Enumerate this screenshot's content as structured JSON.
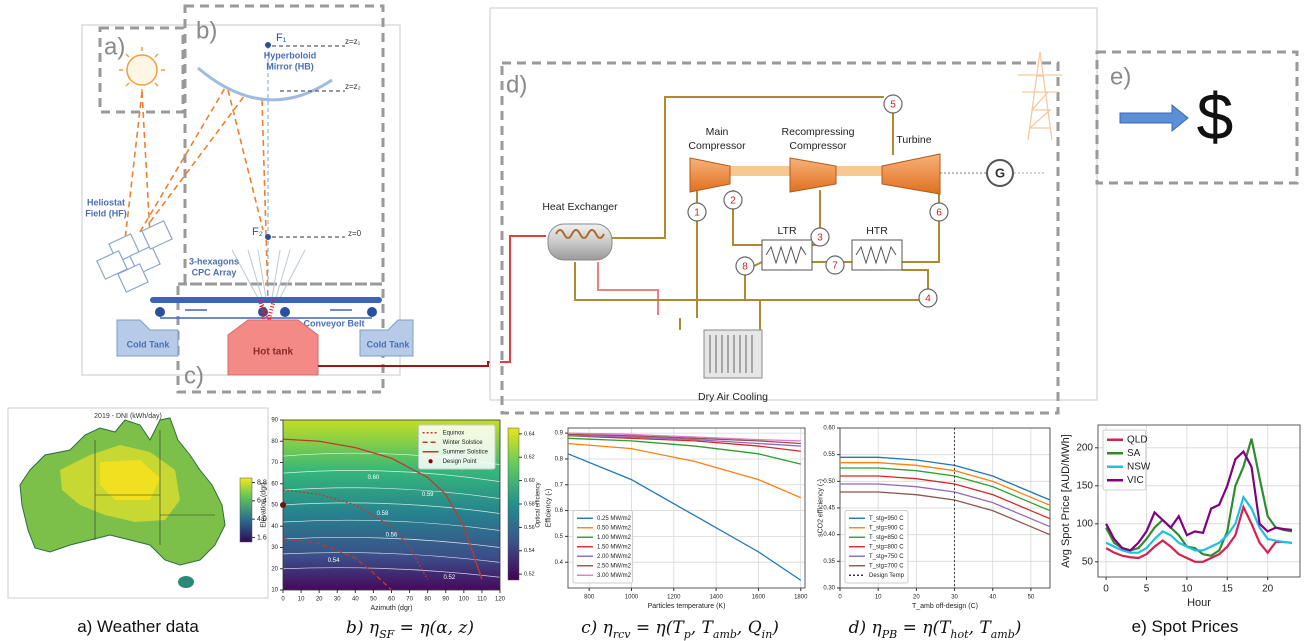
{
  "diagram": {
    "concept": {
      "panel_a": "a)",
      "panel_b": "b)",
      "panel_c": "c)",
      "focus_top": "F₁",
      "level_top": "z=z₁",
      "mirror": [
        "Hyperboloid",
        "Mirror (HB)"
      ],
      "level_mid": "z=z₂",
      "heliostats": [
        "Heliostat",
        "Field (HF)"
      ],
      "focus_bottom": "F₂",
      "level_bottom": "z=0",
      "cpc": [
        "3-hexagons",
        "CPC Array"
      ],
      "conveyor": "Conveyor Belt",
      "cold_tank_left": "Cold Tank",
      "hot_tank": "Hot tank",
      "cold_tank_right": "Cold Tank"
    },
    "power_block": {
      "panel": "d)",
      "main_compressor": [
        "Main",
        "Compressor"
      ],
      "recompressor": [
        "Recompressing",
        "Compressor"
      ],
      "turbine": "Turbine",
      "heat_exchanger": "Heat Exchanger",
      "ltr": "LTR",
      "htr": "HTR",
      "cooler": "Dry Air Cooling",
      "generator": "G",
      "state_points": [
        "1",
        "2",
        "3",
        "4",
        "5",
        "6",
        "7",
        "8"
      ]
    },
    "market": {
      "panel": "e)",
      "symbol": "$"
    }
  },
  "chart_data": [
    {
      "type": "map",
      "title": "2019 - DNI (kWh/day)",
      "clim": [
        1.0,
        9.4
      ],
      "colorbar_ticks": [
        8.8,
        6.4,
        {
          "value": 4,
          "label": "4.0"
        },
        1.6
      ],
      "caption": [
        "a) Weather data"
      ]
    },
    {
      "type": "contour",
      "xlabel": "Azimuth (dgr)",
      "ylabel": "Elevation (dgr)",
      "xlim": [
        0,
        120
      ],
      "ylim": [
        10,
        90
      ],
      "xticks": [
        0,
        10,
        20,
        30,
        40,
        50,
        60,
        70,
        80,
        90,
        100,
        110,
        120
      ],
      "yticks": [
        10,
        20,
        30,
        40,
        50,
        60,
        70,
        80,
        90
      ],
      "grid": false,
      "legend": "upper right",
      "series": [
        {
          "name": "Equinox",
          "color": "#c0392b",
          "dash": "dotted",
          "x": [
            0,
            20,
            40,
            60,
            70,
            80
          ],
          "values": [
            57,
            55,
            50,
            40,
            30,
            15
          ]
        },
        {
          "name": "Winter Solstice",
          "color": "#c0392b",
          "dash": "dashed",
          "x": [
            0,
            20,
            40,
            50,
            60
          ],
          "values": [
            34,
            32,
            25,
            18,
            10
          ]
        },
        {
          "name": "Summer Solstice",
          "color": "#c0392b",
          "dash": "solid",
          "x": [
            0,
            20,
            40,
            60,
            80,
            90,
            100,
            110
          ],
          "values": [
            81,
            80,
            77,
            72,
            63,
            55,
            40,
            15
          ]
        }
      ],
      "points": [
        {
          "name": "Design Point",
          "color": "#8b0000",
          "x": 0,
          "y": 50
        }
      ],
      "contour_labels": [
        "0.61",
        "0.60",
        "0.59",
        "0.58",
        "0.56",
        "0.54",
        "0.52"
      ],
      "colorbar_label": "Optical efficiency",
      "clim": [
        0.515,
        0.645
      ],
      "colorbar_ticks": [
        0.52,
        0.54,
        0.56,
        0.58,
        {
          "value": 0.6,
          "label": "0.60"
        },
        0.62,
        0.64
      ],
      "caption": [
        "b) η",
        "SF",
        " = η(α, z)"
      ]
    },
    {
      "type": "line",
      "xlabel": "Particles temperature (K)",
      "ylabel": "Efficiency (-)",
      "x": [
        700,
        1000,
        1300,
        1600,
        1800
      ],
      "xlim": [
        700,
        1820
      ],
      "ylim": [
        0.3,
        0.92
      ],
      "xticks": [
        800,
        1000,
        1200,
        1400,
        1600,
        1800
      ],
      "yticks": [
        0.4,
        0.5,
        0.6,
        0.7,
        0.8,
        0.9
      ],
      "grid": true,
      "legend": "lower left",
      "series": [
        {
          "name": "0.25 MW/m2",
          "color": "#1f77b4",
          "values": [
            0.82,
            0.72,
            0.58,
            0.44,
            0.33
          ]
        },
        {
          "name": "0.50 MW/m2",
          "color": "#ff7f0e",
          "values": [
            0.86,
            0.84,
            0.79,
            0.72,
            0.65
          ]
        },
        {
          "name": "1.00 MW/m2",
          "color": "#2ca02c",
          "values": [
            0.88,
            0.87,
            0.85,
            0.82,
            0.78
          ]
        },
        {
          "name": "1.50 MW/m2",
          "color": "#d62728",
          "values": [
            0.89,
            0.88,
            0.87,
            0.85,
            0.83
          ]
        },
        {
          "name": "2.00 MW/m2",
          "color": "#9467bd",
          "values": [
            0.89,
            0.885,
            0.875,
            0.86,
            0.85
          ]
        },
        {
          "name": "2.50 MW/m2",
          "color": "#8c564b",
          "values": [
            0.895,
            0.89,
            0.88,
            0.87,
            0.86
          ]
        },
        {
          "name": "3.00 MW/m2",
          "color": "#e377c2",
          "values": [
            0.9,
            0.895,
            0.885,
            0.875,
            0.87
          ]
        }
      ],
      "caption": [
        "c) η",
        "rcv",
        " = η(T",
        "p",
        ", T",
        "amb",
        ", Q",
        "in",
        ")"
      ]
    },
    {
      "type": "line",
      "xlabel": "T_amb off-design (C)",
      "ylabel": "sCO2 efficiency (-)",
      "x": [
        0,
        10,
        20,
        30,
        40,
        50,
        55
      ],
      "xlim": [
        0,
        55
      ],
      "ylim": [
        0.3,
        0.6
      ],
      "xticks": [
        0,
        10,
        20,
        30,
        40,
        50
      ],
      "yticks": [
        {
          "value": 0.3,
          "label": "0.30"
        },
        0.35,
        {
          "value": 0.4,
          "label": "0.40"
        },
        0.45,
        {
          "value": 0.5,
          "label": "0.50"
        },
        0.55,
        {
          "value": 0.6,
          "label": "0.60"
        }
      ],
      "grid": true,
      "legend": "lower left",
      "series": [
        {
          "name": "T_stg=950 C",
          "color": "#1f77b4",
          "values": [
            0.545,
            0.545,
            0.54,
            0.53,
            0.51,
            0.48,
            0.465
          ]
        },
        {
          "name": "T_stg=900 C",
          "color": "#ff7f0e",
          "values": [
            0.535,
            0.535,
            0.53,
            0.52,
            0.5,
            0.47,
            0.455
          ]
        },
        {
          "name": "T_stg=850 C",
          "color": "#2ca02c",
          "values": [
            0.525,
            0.525,
            0.52,
            0.51,
            0.49,
            0.46,
            0.445
          ]
        },
        {
          "name": "T_stg=800 C",
          "color": "#d62728",
          "values": [
            0.51,
            0.51,
            0.505,
            0.495,
            0.475,
            0.445,
            0.43
          ]
        },
        {
          "name": "T_stg=750 C",
          "color": "#9467bd",
          "values": [
            0.495,
            0.495,
            0.49,
            0.48,
            0.46,
            0.43,
            0.415
          ]
        },
        {
          "name": "T_stg=700 C",
          "color": "#8c564b",
          "values": [
            0.48,
            0.48,
            0.475,
            0.465,
            0.445,
            0.415,
            0.4
          ]
        }
      ],
      "vline": {
        "name": "Design Temp",
        "x": 30,
        "color": "#333333"
      },
      "caption": [
        "d) η",
        "PB",
        " = η(T",
        "hot",
        ", T",
        "amb",
        ")"
      ]
    },
    {
      "type": "line",
      "xlabel": "Hour",
      "ylabel": "Avg Spot Price [AUD/MWh]",
      "x": [
        0,
        1,
        2,
        3,
        4,
        5,
        6,
        7,
        8,
        9,
        10,
        11,
        12,
        13,
        14,
        15,
        16,
        17,
        18,
        19,
        20,
        21,
        22,
        23
      ],
      "xlim": [
        -1,
        24
      ],
      "ylim": [
        30,
        230
      ],
      "xticks": [
        0,
        5,
        10,
        15,
        20
      ],
      "yticks": [
        50,
        100,
        150,
        200
      ],
      "grid": true,
      "legend": "upper left",
      "series": [
        {
          "name": "QLD",
          "color": "#d62050",
          "values": [
            68,
            62,
            58,
            56,
            55,
            60,
            70,
            78,
            70,
            60,
            55,
            50,
            50,
            55,
            60,
            70,
            85,
            122,
            100,
            75,
            62,
            76,
            76,
            75
          ]
        },
        {
          "name": "SA",
          "color": "#2e8b2e",
          "values": [
            95,
            75,
            68,
            65,
            68,
            80,
            95,
            105,
            95,
            85,
            70,
            68,
            60,
            58,
            65,
            90,
            150,
            175,
            212,
            160,
            110,
            95,
            92,
            90
          ]
        },
        {
          "name": "NSW",
          "color": "#20c0e0",
          "values": [
            75,
            70,
            65,
            62,
            62,
            68,
            80,
            90,
            85,
            75,
            70,
            65,
            65,
            70,
            75,
            85,
            100,
            135,
            120,
            95,
            80,
            78,
            76,
            75
          ]
        },
        {
          "name": "VIC",
          "color": "#800080",
          "values": [
            100,
            80,
            68,
            65,
            75,
            90,
            115,
            105,
            95,
            110,
            85,
            90,
            88,
            120,
            125,
            150,
            185,
            195,
            175,
            100,
            90,
            95,
            93,
            92
          ]
        }
      ],
      "caption": [
        "e) Spot Prices"
      ]
    }
  ]
}
